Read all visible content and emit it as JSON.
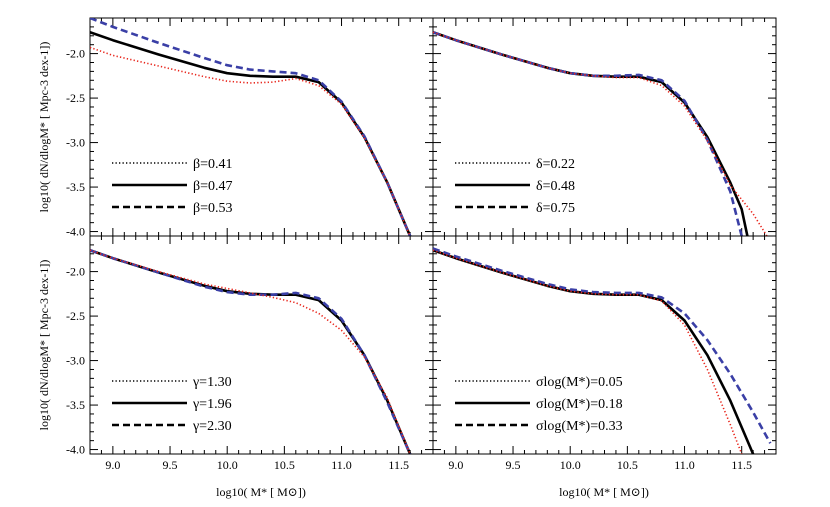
{
  "chart_data": {
    "type": "line",
    "xlabel": "log10( M* [ M⊙])",
    "ylabel": "log10( dN/dlogM* [ Mpc-3 dex-1])",
    "xlim": [
      8.8,
      11.8
    ],
    "ylim": [
      -4.05,
      -1.6
    ],
    "xticks": [
      9.0,
      9.5,
      10.0,
      10.5,
      11.0,
      11.5
    ],
    "yticks": [
      -2.0,
      -2.5,
      -3.0,
      -3.5,
      -4.0
    ],
    "xtick_labels": [
      "9.0",
      "9.5",
      "10.0",
      "10.5",
      "11.0",
      "11.5"
    ],
    "ytick_labels": [
      "-2.0",
      "-2.5",
      "-3.0",
      "-3.5",
      "-4.0"
    ],
    "legend_placement": "bottom-left",
    "style_colors": {
      "dotted": "#e8261c",
      "solid": "#000000",
      "dashed": "#3a3fa6"
    },
    "panels": [
      {
        "param": "β",
        "series": [
          {
            "name": "β=0.41",
            "style": "dotted",
            "x": [
              8.8,
              9.0,
              9.4,
              9.8,
              10.0,
              10.2,
              10.4,
              10.6,
              10.8,
              11.0,
              11.2,
              11.4,
              11.6
            ],
            "y": [
              -1.93,
              -2.02,
              -2.14,
              -2.26,
              -2.31,
              -2.33,
              -2.32,
              -2.28,
              -2.36,
              -2.57,
              -2.95,
              -3.45,
              -4.05
            ]
          },
          {
            "name": "β=0.47",
            "style": "solid",
            "x": [
              8.8,
              9.0,
              9.4,
              9.8,
              10.0,
              10.2,
              10.4,
              10.6,
              10.8,
              11.0,
              11.2,
              11.4,
              11.6
            ],
            "y": [
              -1.76,
              -1.85,
              -2.01,
              -2.16,
              -2.22,
              -2.25,
              -2.26,
              -2.26,
              -2.32,
              -2.55,
              -2.94,
              -3.45,
              -4.05
            ]
          },
          {
            "name": "β=0.53",
            "style": "dashed",
            "x": [
              8.8,
              9.0,
              9.4,
              9.8,
              10.0,
              10.2,
              10.4,
              10.6,
              10.8,
              11.0,
              11.2,
              11.4,
              11.6
            ],
            "y": [
              -1.6,
              -1.7,
              -1.88,
              -2.05,
              -2.13,
              -2.18,
              -2.2,
              -2.22,
              -2.3,
              -2.54,
              -2.93,
              -3.45,
              -4.05
            ]
          }
        ]
      },
      {
        "param": "δ",
        "series": [
          {
            "name": "δ=0.22",
            "style": "dotted",
            "x": [
              8.8,
              9.0,
              9.4,
              9.8,
              10.0,
              10.2,
              10.4,
              10.6,
              10.8,
              11.0,
              11.2,
              11.4,
              11.6,
              11.72
            ],
            "y": [
              -1.76,
              -1.85,
              -2.01,
              -2.16,
              -2.22,
              -2.25,
              -2.27,
              -2.27,
              -2.36,
              -2.59,
              -2.98,
              -3.48,
              -3.8,
              -4.05
            ]
          },
          {
            "name": "δ=0.48",
            "style": "solid",
            "x": [
              8.8,
              9.0,
              9.4,
              9.8,
              10.0,
              10.2,
              10.4,
              10.6,
              10.8,
              11.0,
              11.2,
              11.4,
              11.5,
              11.55
            ],
            "y": [
              -1.76,
              -1.85,
              -2.01,
              -2.16,
              -2.22,
              -2.25,
              -2.26,
              -2.26,
              -2.32,
              -2.55,
              -2.94,
              -3.45,
              -3.75,
              -4.05
            ]
          },
          {
            "name": "δ=0.75",
            "style": "dashed",
            "x": [
              8.8,
              9.0,
              9.4,
              9.8,
              10.0,
              10.2,
              10.4,
              10.6,
              10.8,
              11.0,
              11.2,
              11.4,
              11.5
            ],
            "y": [
              -1.76,
              -1.85,
              -2.01,
              -2.16,
              -2.22,
              -2.25,
              -2.25,
              -2.24,
              -2.3,
              -2.53,
              -2.97,
              -3.55,
              -4.05
            ]
          }
        ]
      },
      {
        "param": "γ",
        "series": [
          {
            "name": "γ=1.30",
            "style": "dotted",
            "x": [
              8.8,
              9.0,
              9.4,
              9.8,
              10.0,
              10.2,
              10.4,
              10.6,
              10.8,
              11.0,
              11.2,
              11.4,
              11.6
            ],
            "y": [
              -1.76,
              -1.85,
              -2.0,
              -2.14,
              -2.19,
              -2.24,
              -2.29,
              -2.35,
              -2.47,
              -2.66,
              -2.96,
              -3.42,
              -4.05
            ]
          },
          {
            "name": "γ=1.96",
            "style": "solid",
            "x": [
              8.8,
              9.0,
              9.4,
              9.8,
              10.0,
              10.2,
              10.4,
              10.6,
              10.8,
              11.0,
              11.2,
              11.4,
              11.6
            ],
            "y": [
              -1.76,
              -1.85,
              -2.01,
              -2.16,
              -2.22,
              -2.25,
              -2.26,
              -2.26,
              -2.32,
              -2.55,
              -2.94,
              -3.45,
              -4.05
            ]
          },
          {
            "name": "γ=2.30",
            "style": "dashed",
            "x": [
              8.8,
              9.0,
              9.4,
              9.8,
              10.0,
              10.2,
              10.4,
              10.6,
              10.8,
              11.0,
              11.2,
              11.4,
              11.6
            ],
            "y": [
              -1.76,
              -1.85,
              -2.01,
              -2.17,
              -2.23,
              -2.26,
              -2.26,
              -2.24,
              -2.3,
              -2.53,
              -2.94,
              -3.47,
              -4.05
            ]
          }
        ]
      },
      {
        "param": "σ",
        "series": [
          {
            "name": "σlog(M*)=0.05",
            "style": "dotted",
            "x": [
              8.8,
              9.0,
              9.4,
              9.8,
              10.0,
              10.2,
              10.4,
              10.6,
              10.8,
              11.0,
              11.2,
              11.4,
              11.5
            ],
            "y": [
              -1.76,
              -1.85,
              -2.01,
              -2.16,
              -2.22,
              -2.25,
              -2.26,
              -2.26,
              -2.33,
              -2.6,
              -3.1,
              -3.72,
              -4.05
            ]
          },
          {
            "name": "σlog(M*)=0.18",
            "style": "solid",
            "x": [
              8.8,
              9.0,
              9.4,
              9.8,
              10.0,
              10.2,
              10.4,
              10.6,
              10.8,
              11.0,
              11.2,
              11.4,
              11.6
            ],
            "y": [
              -1.76,
              -1.85,
              -2.01,
              -2.16,
              -2.22,
              -2.25,
              -2.26,
              -2.26,
              -2.32,
              -2.55,
              -2.94,
              -3.45,
              -4.05
            ]
          },
          {
            "name": "σlog(M*)=0.33",
            "style": "dashed",
            "x": [
              8.8,
              9.0,
              9.4,
              9.8,
              10.0,
              10.2,
              10.4,
              10.6,
              10.8,
              11.0,
              11.2,
              11.4,
              11.6,
              11.75
            ],
            "y": [
              -1.74,
              -1.83,
              -1.99,
              -2.14,
              -2.2,
              -2.23,
              -2.24,
              -2.24,
              -2.29,
              -2.47,
              -2.77,
              -3.15,
              -3.58,
              -3.93
            ]
          }
        ]
      }
    ]
  }
}
